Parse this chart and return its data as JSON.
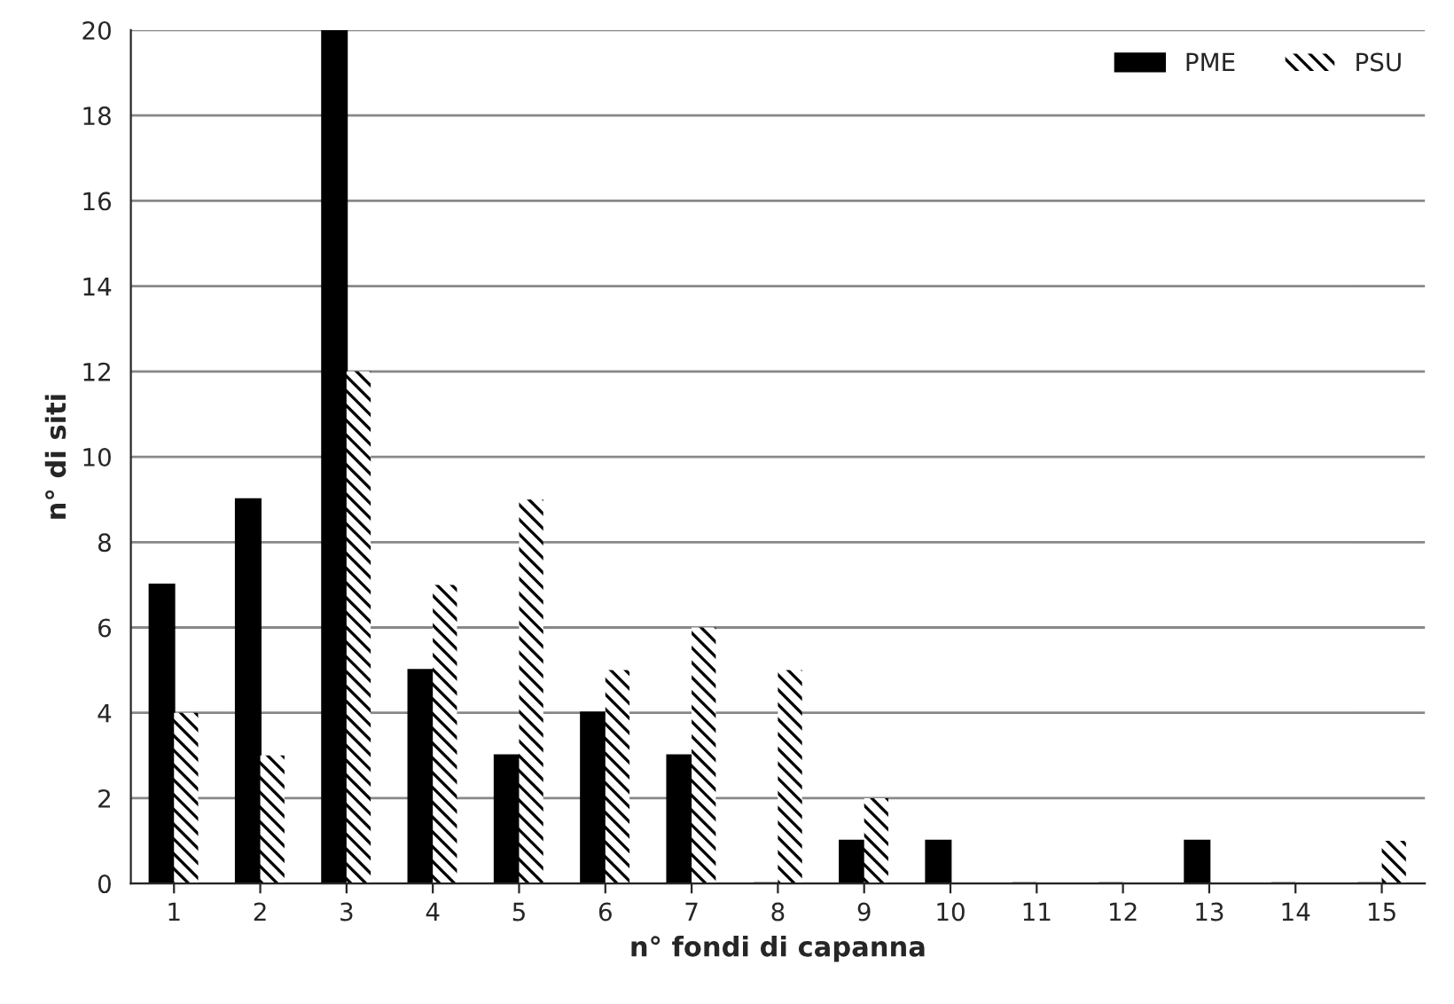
{
  "chart_data": {
    "type": "bar",
    "xlabel": "n° fondi di capanna",
    "ylabel": "n° di siti",
    "categories": [
      "1",
      "2",
      "3",
      "4",
      "5",
      "6",
      "7",
      "8",
      "9",
      "10",
      "11",
      "12",
      "13",
      "14",
      "15"
    ],
    "series": [
      {
        "name": "PME",
        "color": "#000000",
        "values": [
          7,
          9,
          20,
          5,
          3,
          4,
          3,
          0,
          1,
          1,
          0,
          0,
          1,
          0,
          0
        ]
      },
      {
        "name": "PSU",
        "color": "#000000",
        "values": [
          4,
          3,
          12,
          7,
          9,
          5,
          6,
          5,
          2,
          0,
          0,
          0,
          0,
          0,
          1
        ]
      }
    ],
    "ylim": [
      0,
      20
    ],
    "yticks": [
      0,
      2,
      4,
      6,
      8,
      10,
      12,
      14,
      16,
      18,
      20
    ],
    "grid": "y",
    "legend": "top right"
  }
}
